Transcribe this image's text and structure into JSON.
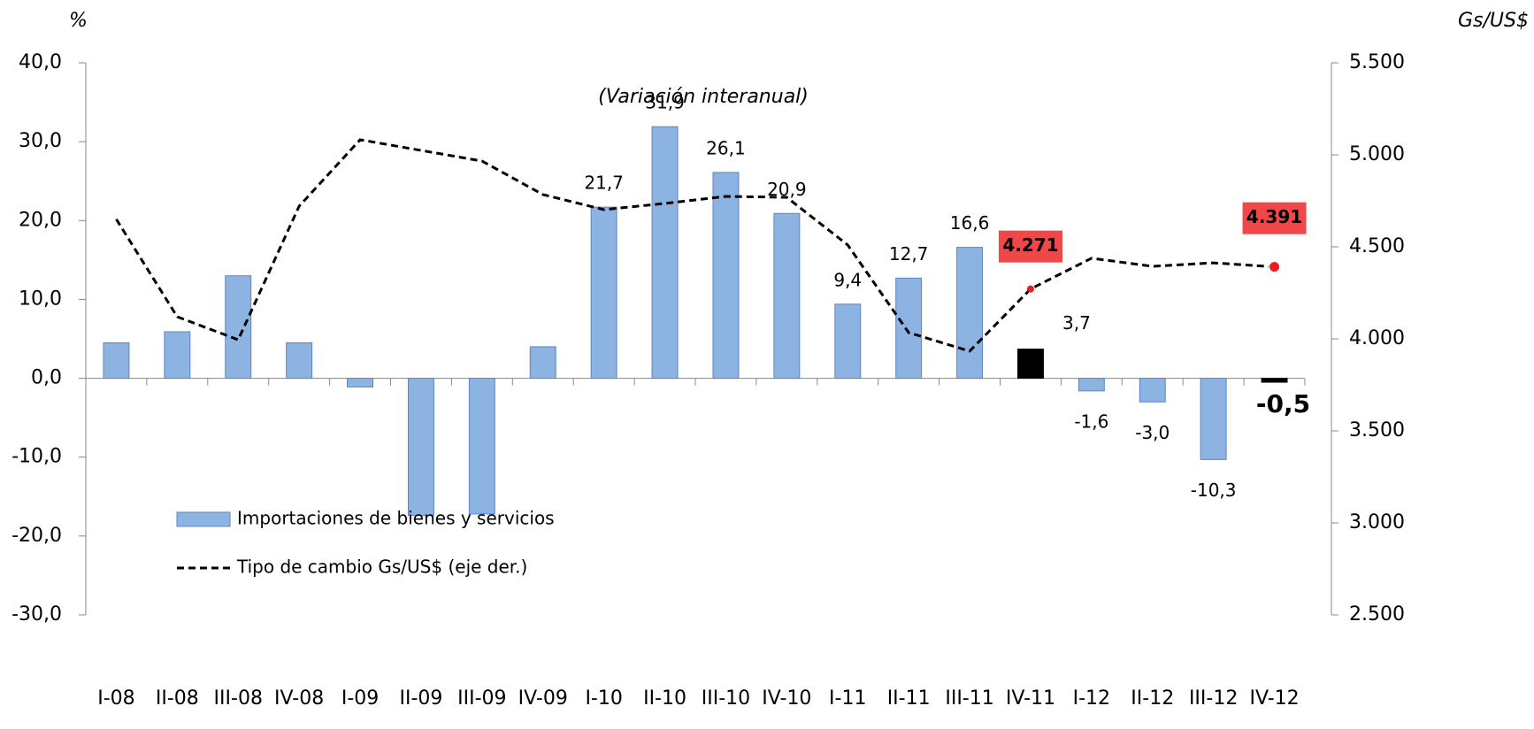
{
  "chart_data": {
    "type": "bar",
    "subtitle": "(Variación interanual)",
    "ylabel": "%",
    "y2label": "Gs/US$",
    "categories": [
      "I-08",
      "II-08",
      "III-08",
      "IV-08",
      "I-09",
      "II-09",
      "III-09",
      "IV-09",
      "I-10",
      "II-10",
      "III-10",
      "IV-10",
      "I-11",
      "II-11",
      "III-11",
      "IV-11",
      "I-12",
      "II-12",
      "III-12",
      "IV-12"
    ],
    "ylim": [
      -30,
      40
    ],
    "yticks": [
      {
        "value": -30,
        "label": "-30,0"
      },
      {
        "value": -20,
        "label": "-20,0"
      },
      {
        "value": -10,
        "label": "-10,0"
      },
      {
        "value": 0,
        "label": "0,0"
      },
      {
        "value": 10,
        "label": "10,0"
      },
      {
        "value": 20,
        "label": "20,0"
      },
      {
        "value": 30,
        "label": "30,0"
      },
      {
        "value": 40,
        "label": "40,0"
      }
    ],
    "y2lim": [
      2500,
      5500
    ],
    "y2ticks": [
      {
        "value": 2500,
        "label": "2.500"
      },
      {
        "value": 3000,
        "label": "3.000"
      },
      {
        "value": 3500,
        "label": "3.500"
      },
      {
        "value": 4000,
        "label": "4.000"
      },
      {
        "value": 4500,
        "label": "4.500"
      },
      {
        "value": 5000,
        "label": "5.000"
      },
      {
        "value": 5500,
        "label": "5.500"
      }
    ],
    "series": [
      {
        "name": "Importaciones de bienes y servicios",
        "type": "bar",
        "color": "#8db3e2",
        "values": [
          4.5,
          5.9,
          13.0,
          4.5,
          -1.1,
          -17.4,
          -17.2,
          4.0,
          21.7,
          31.9,
          26.1,
          20.9,
          9.4,
          12.7,
          16.6,
          3.7,
          -1.6,
          -3.0,
          -10.3,
          -0.5
        ],
        "colors": [
          "#8db3e2",
          "#8db3e2",
          "#8db3e2",
          "#8db3e2",
          "#8db3e2",
          "#8db3e2",
          "#8db3e2",
          "#8db3e2",
          "#8db3e2",
          "#8db3e2",
          "#8db3e2",
          "#8db3e2",
          "#8db3e2",
          "#8db3e2",
          "#8db3e2",
          "#000000",
          "#8db3e2",
          "#8db3e2",
          "#8db3e2",
          "#000000"
        ],
        "value_labels": [
          null,
          null,
          null,
          null,
          null,
          null,
          null,
          null,
          "21,7",
          "31,9",
          "26,1",
          "20,9",
          "9,4",
          "12,7",
          "16,6",
          "3,7",
          "-1,6",
          "-3,0",
          "-10,3",
          "-0,5"
        ],
        "value_label_colors": [
          "#000000",
          "#000000",
          "#000000",
          "#000000",
          "#000000",
          "#000000",
          "#000000",
          "#000000",
          "#000000",
          "#000000",
          "#000000",
          "#000000",
          "#000000",
          "#000000",
          "#000000",
          "#000000",
          "#000000",
          "#000000",
          "#000000",
          "#ff0000"
        ]
      },
      {
        "name": "Tipo de cambio Gs/US$ (eje der.)",
        "type": "line",
        "axis": "y2",
        "color": "#000000",
        "dash": true,
        "label_color": "#f04848",
        "values": [
          4650,
          4120,
          3995,
          4721,
          5082,
          5024,
          4966,
          4784,
          4702,
          4736,
          4774,
          4769,
          4510,
          4034,
          3933,
          4271,
          4438,
          4394,
          4413,
          4391
        ],
        "value_labels": [
          null,
          null,
          null,
          null,
          null,
          null,
          null,
          null,
          null,
          null,
          null,
          null,
          null,
          null,
          null,
          "4.271",
          null,
          null,
          null,
          "4.391"
        ]
      }
    ]
  }
}
